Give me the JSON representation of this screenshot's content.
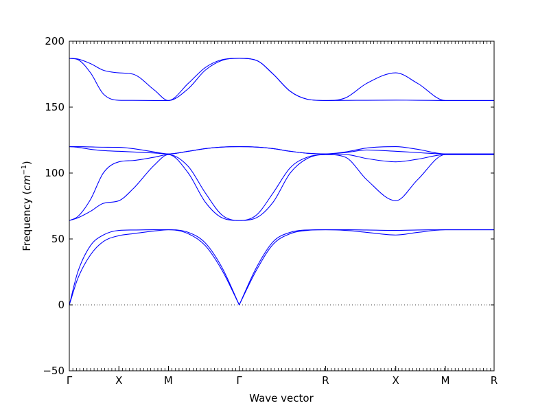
{
  "chart_data": {
    "type": "line",
    "title": "",
    "xlabel": "Wave vector",
    "ylabel": "Frequency",
    "ylabel_unit_base": "cm",
    "ylabel_unit_exp": "−1",
    "ylim": [
      -50,
      200
    ],
    "yticks": [
      -50,
      0,
      50,
      100,
      150,
      200
    ],
    "ytick_labels": [
      "−50",
      "0",
      "50",
      "100",
      "150",
      "200"
    ],
    "xlim": [
      0,
      1
    ],
    "high_symmetry_points": [
      {
        "label": "Γ",
        "x": 0.0
      },
      {
        "label": "X",
        "x": 0.1167
      },
      {
        "label": "M",
        "x": 0.2333
      },
      {
        "label": "Γ",
        "x": 0.4
      },
      {
        "label": "R",
        "x": 0.6032
      },
      {
        "label": "X",
        "x": 0.7685
      },
      {
        "label": "M",
        "x": 0.8852
      },
      {
        "label": "R",
        "x": 1.0
      }
    ],
    "zero_line": {
      "y": 0,
      "style": "dotted"
    },
    "line_color": "#0000ff",
    "branches": [
      {
        "x": [
          0.0,
          0.02,
          0.05,
          0.08,
          0.1167,
          0.15,
          0.2,
          0.2333,
          0.28,
          0.32,
          0.36,
          0.4,
          0.44,
          0.48,
          0.52,
          0.56,
          0.6032,
          0.65,
          0.7,
          0.7685,
          0.82,
          0.8852,
          0.93,
          1.0
        ],
        "y": [
          0,
          25,
          45,
          53,
          56.5,
          56.8,
          57,
          57,
          55,
          47,
          28,
          0,
          28,
          48,
          55,
          56.8,
          57,
          57,
          56.8,
          56.5,
          56.8,
          57,
          57,
          57
        ]
      },
      {
        "x": [
          0.0,
          0.02,
          0.05,
          0.08,
          0.1167,
          0.15,
          0.2,
          0.2333,
          0.28,
          0.32,
          0.36,
          0.4,
          0.44,
          0.48,
          0.52,
          0.56,
          0.6032,
          0.65,
          0.7,
          0.7685,
          0.82,
          0.8852,
          0.93,
          1.0
        ],
        "y": [
          0,
          20,
          38,
          48,
          52.5,
          54,
          56,
          57,
          54,
          45,
          26,
          0,
          26,
          46,
          54,
          56.5,
          57,
          56.5,
          55,
          53,
          55,
          57,
          57,
          57
        ]
      },
      {
        "x": [
          0.0,
          0.02,
          0.05,
          0.08,
          0.1167,
          0.15,
          0.2,
          0.2333,
          0.28,
          0.32,
          0.36,
          0.4,
          0.44,
          0.48,
          0.52,
          0.56,
          0.6032,
          0.65,
          0.7,
          0.7685,
          0.82,
          0.8852,
          0.93,
          1.0
        ],
        "y": [
          64,
          67,
          80,
          100,
          108.5,
          109.5,
          112,
          114,
          105,
          85,
          68,
          64,
          68,
          85,
          104,
          112,
          114,
          114,
          111,
          108.5,
          110.5,
          114,
          114,
          114
        ]
      },
      {
        "x": [
          0.0,
          0.02,
          0.05,
          0.08,
          0.1167,
          0.15,
          0.2,
          0.2333,
          0.28,
          0.32,
          0.36,
          0.4,
          0.44,
          0.48,
          0.52,
          0.56,
          0.6032,
          0.65,
          0.7,
          0.7685,
          0.82,
          0.8852,
          0.93,
          1.0
        ],
        "y": [
          64,
          66,
          71,
          77,
          79,
          88,
          106,
          114,
          100,
          78,
          66,
          64,
          66,
          78,
          100,
          111,
          114,
          112,
          95,
          79,
          95,
          114,
          114,
          114
        ]
      },
      {
        "x": [
          0.0,
          0.02,
          0.05,
          0.08,
          0.1167,
          0.15,
          0.2,
          0.2333,
          0.28,
          0.32,
          0.36,
          0.4,
          0.44,
          0.48,
          0.52,
          0.56,
          0.6032,
          0.65,
          0.7,
          0.7685,
          0.82,
          0.8852,
          0.93,
          1.0
        ],
        "y": [
          120,
          120,
          119.8,
          119.6,
          119.5,
          118.5,
          116,
          114.5,
          116.5,
          118.5,
          119.7,
          120,
          119.7,
          118.5,
          116.5,
          115,
          114.5,
          115.5,
          117.5,
          116.5,
          115.5,
          114.5,
          114.5,
          114.5
        ]
      },
      {
        "x": [
          0.0,
          0.02,
          0.05,
          0.08,
          0.1167,
          0.15,
          0.2,
          0.2333,
          0.28,
          0.32,
          0.36,
          0.4,
          0.44,
          0.48,
          0.52,
          0.56,
          0.6032,
          0.65,
          0.7,
          0.7685,
          0.82,
          0.8852,
          0.93,
          1.0
        ],
        "y": [
          120,
          119.5,
          118,
          117,
          116.5,
          116,
          115.2,
          114.5,
          116.5,
          118.5,
          119.7,
          120,
          119.7,
          118.5,
          116.5,
          115,
          114.5,
          116,
          119,
          120,
          118,
          114.5,
          114.5,
          114.5
        ]
      },
      {
        "x": [
          0.0,
          0.02,
          0.05,
          0.08,
          0.1167,
          0.15,
          0.2,
          0.2333,
          0.28,
          0.32,
          0.36,
          0.4,
          0.44,
          0.48,
          0.52,
          0.56,
          0.6032,
          0.65,
          0.7,
          0.7685,
          0.82,
          0.8852,
          0.93,
          1.0
        ],
        "y": [
          187,
          186,
          176,
          160,
          155.2,
          155.1,
          155,
          155,
          164,
          178,
          185.5,
          187,
          185.5,
          175,
          162,
          156,
          155,
          155.1,
          155.2,
          155.3,
          155.2,
          155,
          155,
          155
        ]
      },
      {
        "x": [
          0.0,
          0.02,
          0.05,
          0.08,
          0.1167,
          0.15,
          0.2,
          0.2333,
          0.28,
          0.32,
          0.36,
          0.4,
          0.44,
          0.48,
          0.52,
          0.56,
          0.6032,
          0.65,
          0.7,
          0.7685,
          0.82,
          0.8852,
          0.93,
          1.0
        ],
        "y": [
          187,
          186.5,
          183,
          178,
          176,
          175,
          163,
          155,
          168,
          180,
          186,
          187,
          185.5,
          175,
          162,
          156,
          155,
          157,
          168,
          176,
          168,
          155,
          155,
          155
        ]
      }
    ]
  }
}
